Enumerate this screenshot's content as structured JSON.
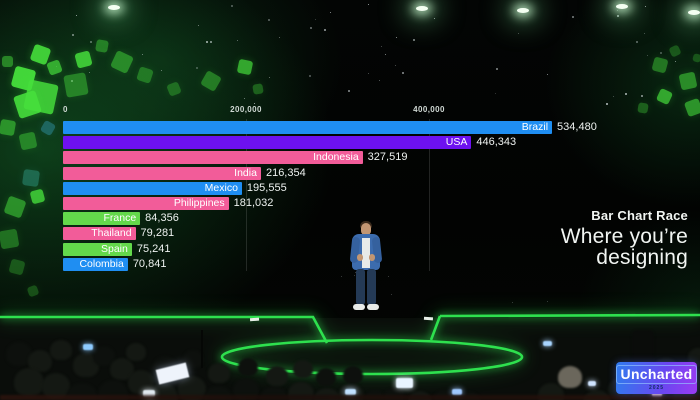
{
  "screen": {
    "subtitle": "Bar Chart Race",
    "title": "Where you’re designing"
  },
  "chart_data": {
    "type": "bar",
    "orientation": "horizontal",
    "title": "Where you’re designing",
    "subtitle": "Bar Chart Race",
    "categories": [
      "Brazil",
      "USA",
      "Indonesia",
      "India",
      "Mexico",
      "Philippines",
      "France",
      "Thailand",
      "Spain",
      "Colombia"
    ],
    "values": [
      534480,
      446343,
      327519,
      216354,
      195555,
      181032,
      84356,
      79281,
      75241,
      70841
    ],
    "value_labels": [
      "534,480",
      "446,343",
      "327,519",
      "216,354",
      "195,555",
      "181,032",
      "84,356",
      "79,281",
      "75,241",
      "70,841"
    ],
    "bar_colors": [
      "#1f8ef2",
      "#6d11f0",
      "#f25c99",
      "#f25c99",
      "#1f8ef2",
      "#f25c99",
      "#63d94b",
      "#f25c99",
      "#63d94b",
      "#1f8ef2"
    ],
    "x_ticks": [
      "0",
      "200,000",
      "400,000"
    ],
    "x_tick_values": [
      0,
      200000,
      400000
    ],
    "xlim": [
      0,
      630000
    ],
    "grid": "faint vertical gridlines at ticks",
    "legend": "none",
    "label_style": "country name inside bar end, value outside bar"
  },
  "badge": {
    "label": "Uncharted",
    "year": "2025"
  },
  "stage": {
    "neon_color": "#2ee04e",
    "cube_color": "#46e03c",
    "scene": "keynote stage, presenter center, starry backdrop, green cube wall left, audience below"
  }
}
